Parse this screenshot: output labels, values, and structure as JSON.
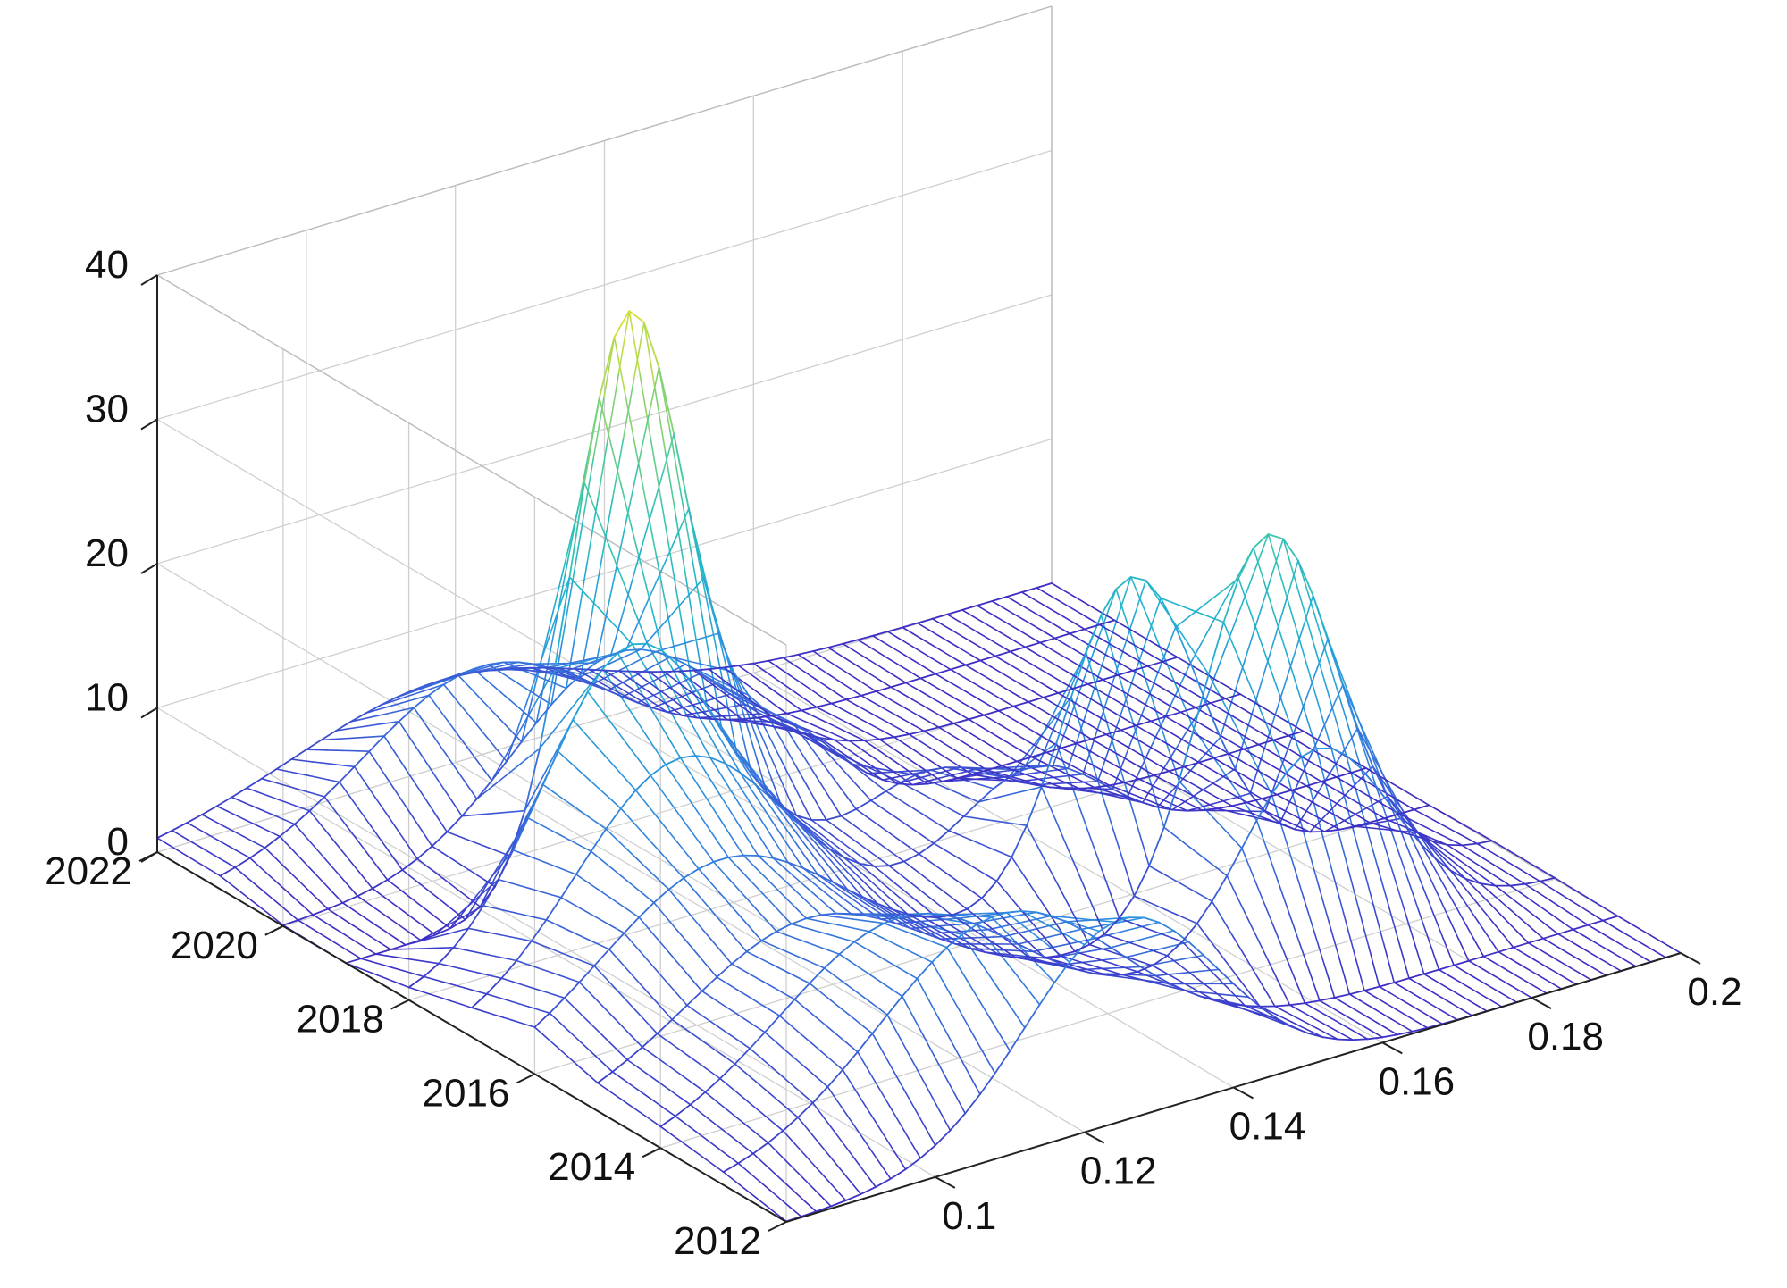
{
  "chart_data": {
    "type": "surface",
    "title": "",
    "xlabel": "",
    "ylabel": "",
    "zlabel": "",
    "grid": true,
    "colormap": [
      "#3d2fc4",
      "#3b5fd8",
      "#2f8fe0",
      "#22b3cf",
      "#3fc9a8",
      "#8fd36a",
      "#e8e22c"
    ],
    "x_axis": {
      "range": [
        0.08,
        0.2
      ],
      "ticks": [
        0.1,
        0.12,
        0.14,
        0.16,
        0.18,
        0.2
      ],
      "tick_labels": [
        "0.1",
        "0.12",
        "0.14",
        "0.16",
        "0.18",
        "0.2"
      ]
    },
    "y_axis": {
      "range": [
        2012,
        2022
      ],
      "ticks": [
        2012,
        2014,
        2016,
        2018,
        2020,
        2022
      ],
      "tick_labels": [
        "2012",
        "2014",
        "2016",
        "2018",
        "2020",
        "2022"
      ]
    },
    "z_axis": {
      "range": [
        0,
        40
      ],
      "ticks": [
        0,
        10,
        20,
        30,
        40
      ],
      "tick_labels": [
        "0",
        "10",
        "20",
        "30",
        "40"
      ]
    },
    "surface": {
      "x_samples": 61,
      "years": [
        2012,
        2013,
        2014,
        2015,
        2016,
        2017,
        2018,
        2019,
        2020,
        2021,
        2022
      ],
      "peaks_by_year": [
        {
          "year": 2012,
          "peaks": [
            {
              "x": 0.125,
              "height": 14,
              "width": 0.013
            }
          ]
        },
        {
          "year": 2013,
          "peaks": [
            {
              "x": 0.117,
              "height": 13,
              "width": 0.016
            }
          ]
        },
        {
          "year": 2014,
          "peaks": [
            {
              "x": 0.112,
              "height": 11,
              "width": 0.016
            },
            {
              "x": 0.168,
              "height": 14,
              "width": 0.01
            }
          ]
        },
        {
          "year": 2015,
          "peaks": [
            {
              "x": 0.108,
              "height": 9,
              "width": 0.016
            },
            {
              "x": 0.17,
              "height": 26,
              "width": 0.009
            }
          ]
        },
        {
          "year": 2016,
          "peaks": [
            {
              "x": 0.105,
              "height": 11,
              "width": 0.016
            },
            {
              "x": 0.16,
              "height": 22,
              "width": 0.009
            }
          ]
        },
        {
          "year": 2017,
          "peaks": [
            {
              "x": 0.108,
              "height": 15,
              "width": 0.014
            },
            {
              "x": 0.155,
              "height": 7,
              "width": 0.01
            }
          ]
        },
        {
          "year": 2018,
          "peaks": [
            {
              "x": 0.11,
              "height": 20,
              "width": 0.012
            },
            {
              "x": 0.15,
              "height": 5,
              "width": 0.01
            }
          ]
        },
        {
          "year": 2019,
          "peaks": [
            {
              "x": 0.118,
              "height": 39,
              "width": 0.0075
            },
            {
              "x": 0.138,
              "height": 7,
              "width": 0.008
            }
          ]
        },
        {
          "year": 2020,
          "peaks": [
            {
              "x": 0.125,
              "height": 12,
              "width": 0.014
            }
          ]
        },
        {
          "year": 2021,
          "peaks": [
            {
              "x": 0.115,
              "height": 10,
              "width": 0.016
            }
          ]
        },
        {
          "year": 2022,
          "peaks": [
            {
              "x": 0.118,
              "height": 6,
              "width": 0.02
            }
          ]
        }
      ]
    }
  }
}
